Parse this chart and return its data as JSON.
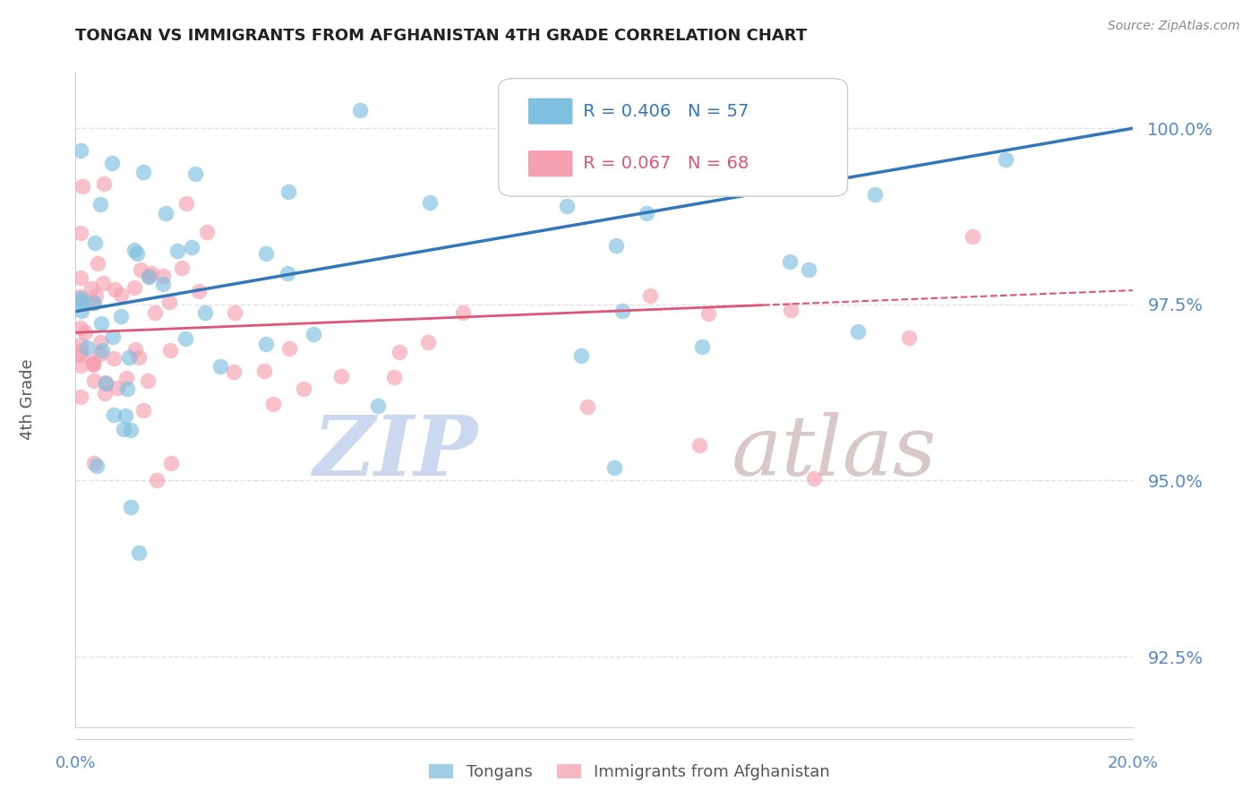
{
  "title": "TONGAN VS IMMIGRANTS FROM AFGHANISTAN 4TH GRADE CORRELATION CHART",
  "source": "Source: ZipAtlas.com",
  "ylabel": "4th Grade",
  "xlim": [
    0.0,
    0.2
  ],
  "ylim": [
    0.915,
    1.008
  ],
  "yticks": [
    0.925,
    0.95,
    0.975,
    1.0
  ],
  "ytick_labels": [
    "92.5%",
    "95.0%",
    "97.5%",
    "100.0%"
  ],
  "legend_blue_r": "R = 0.406",
  "legend_blue_n": "N = 57",
  "legend_pink_r": "R = 0.067",
  "legend_pink_n": "N = 68",
  "blue_scatter_color": "#7fbfdf",
  "pink_scatter_color": "#f5a0b0",
  "blue_line_color": "#3377bb",
  "pink_line_color": "#dd5577",
  "axis_label_color": "#5588cc",
  "grid_color": "#e0e0ee",
  "background_color": "#ffffff",
  "watermark_zip_color": "#ccd8ef",
  "watermark_atlas_color": "#d8c8c8",
  "R_blue": 0.406,
  "N_blue": 57,
  "R_pink": 0.067,
  "N_pink": 68
}
